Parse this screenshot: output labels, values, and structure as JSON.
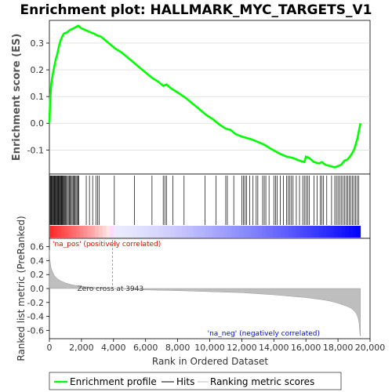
{
  "title": "Enrichment plot: HALLMARK_MYC_TARGETS_V1",
  "colors": {
    "es_line": "#00ff00",
    "hits": "#000000",
    "metric_fill": "#bebebe",
    "pos_text": "#ff0000",
    "neg_text": "#0000ff",
    "pos_band": "#ff0000",
    "neg_band": "#0000ff",
    "grid": "#d0d0d0",
    "zero_line": "#999999"
  },
  "legend": {
    "es": "Enrichment profile",
    "hits": "Hits",
    "metric": "Ranking metric scores"
  },
  "chart_data": {
    "type": "line",
    "title": "Enrichment plot: HALLMARK_MYC_TARGETS_V1",
    "xlabel": "Rank in Ordered Dataset",
    "xlim": [
      0,
      20000
    ],
    "x_ticks": [
      0,
      2000,
      4000,
      6000,
      8000,
      10000,
      12000,
      14000,
      16000,
      18000,
      20000
    ],
    "x_tick_labels": [
      "0",
      "2,000",
      "4,000",
      "6,000",
      "8,000",
      "10,000",
      "12,000",
      "14,000",
      "16,000",
      "18,000",
      "20,000"
    ],
    "n_genes": 19400,
    "es_panel": {
      "ylabel": "Enrichment score (ES)",
      "ylim": [
        -0.19,
        0.385
      ],
      "y_ticks": [
        -0.1,
        0.0,
        0.1,
        0.2,
        0.3
      ],
      "y_tick_labels": [
        "-0.1",
        "0.0",
        "0.1",
        "0.2",
        "0.3"
      ],
      "grid": true,
      "series": [
        {
          "name": "Enrichment profile",
          "x": [
            0,
            50,
            120,
            200,
            300,
            400,
            500,
            600,
            700,
            800,
            900,
            1000,
            1100,
            1200,
            1300,
            1400,
            1500,
            1600,
            1700,
            1800,
            2000,
            2200,
            2500,
            2800,
            3000,
            3200,
            3500,
            3800,
            4100,
            4500,
            5000,
            5300,
            5600,
            6000,
            6400,
            6800,
            7100,
            7300,
            7600,
            8000,
            8500,
            9000,
            9500,
            9800,
            10200,
            10600,
            11000,
            11300,
            11600,
            12000,
            12300,
            12600,
            13000,
            13400,
            13800,
            14100,
            14400,
            14800,
            15200,
            15600,
            15900,
            16000,
            16200,
            16500,
            16800,
            17000,
            17200,
            17500,
            17800,
            18000,
            18200,
            18400,
            18600,
            18800,
            19000,
            19100,
            19200,
            19300,
            19400
          ],
          "values": [
            0.0,
            0.09,
            0.15,
            0.18,
            0.21,
            0.24,
            0.26,
            0.29,
            0.31,
            0.325,
            0.335,
            0.338,
            0.34,
            0.345,
            0.35,
            0.352,
            0.355,
            0.358,
            0.362,
            0.365,
            0.355,
            0.35,
            0.342,
            0.335,
            0.328,
            0.325,
            0.31,
            0.295,
            0.28,
            0.265,
            0.24,
            0.225,
            0.21,
            0.19,
            0.17,
            0.155,
            0.14,
            0.145,
            0.13,
            0.115,
            0.095,
            0.07,
            0.045,
            0.03,
            0.015,
            -0.005,
            -0.02,
            -0.025,
            -0.04,
            -0.05,
            -0.055,
            -0.06,
            -0.07,
            -0.08,
            -0.095,
            -0.105,
            -0.115,
            -0.125,
            -0.13,
            -0.14,
            -0.145,
            -0.125,
            -0.13,
            -0.145,
            -0.15,
            -0.145,
            -0.155,
            -0.16,
            -0.165,
            -0.16,
            -0.155,
            -0.14,
            -0.135,
            -0.12,
            -0.1,
            -0.08,
            -0.06,
            -0.03,
            0.0
          ]
        }
      ]
    },
    "hits_panel": {
      "hit_ranks": [
        20,
        60,
        100,
        140,
        180,
        220,
        260,
        300,
        340,
        380,
        420,
        460,
        500,
        540,
        580,
        620,
        660,
        700,
        740,
        780,
        820,
        860,
        900,
        950,
        1000,
        1060,
        1120,
        1180,
        1240,
        1300,
        1360,
        1420,
        1480,
        1540,
        1600,
        1660,
        1720,
        1780,
        1840,
        2300,
        2500,
        2700,
        2900,
        3000,
        3100,
        4050,
        5300,
        6400,
        7100,
        7200,
        7300,
        7700,
        8400,
        9700,
        10400,
        11000,
        11100,
        11500,
        12000,
        12100,
        12200,
        12300,
        12500,
        12700,
        12900,
        13000,
        13300,
        13400,
        13500,
        13700,
        14000,
        14100,
        14200,
        14400,
        14600,
        14800,
        14900,
        15000,
        15100,
        15200,
        15400,
        15600,
        15800,
        15900,
        16000,
        16100,
        16200,
        16500,
        16700,
        16900,
        17000,
        17100,
        17300,
        17600,
        17800,
        17900,
        18000,
        18100,
        18200,
        18300,
        18400,
        18500,
        18600,
        18700,
        18800,
        18900,
        19000,
        19100,
        19200,
        19300
      ]
    },
    "metric_panel": {
      "ylabel": "Ranked list metric (PreRanked)",
      "ylim": [
        -0.72,
        0.72
      ],
      "y_ticks": [
        -0.6,
        -0.4,
        -0.2,
        0.0,
        0.2,
        0.4,
        0.6
      ],
      "y_tick_labels": [
        "-0.6",
        "-0.4",
        "-0.2",
        "0.0",
        "0.2",
        "0.4",
        "0.6"
      ],
      "zero_cross": 3943,
      "zero_cross_label": "Zero cross at 3943",
      "pos_label": "'na_pos' (positively correlated)",
      "neg_label": "'na_neg' (negatively correlated)",
      "x": [
        0,
        30,
        100,
        200,
        300,
        500,
        700,
        1000,
        1300,
        1600,
        2000,
        2500,
        3000,
        3500,
        3943,
        5000,
        6000,
        8000,
        10000,
        12000,
        14000,
        16000,
        17000,
        17500,
        18000,
        18500,
        18800,
        19000,
        19150,
        19250,
        19320,
        19380,
        19400
      ],
      "values": [
        0.55,
        0.42,
        0.3,
        0.24,
        0.19,
        0.14,
        0.11,
        0.08,
        0.06,
        0.045,
        0.03,
        0.02,
        0.012,
        0.005,
        0.0,
        -0.01,
        -0.02,
        -0.03,
        -0.045,
        -0.06,
        -0.09,
        -0.13,
        -0.16,
        -0.18,
        -0.21,
        -0.25,
        -0.28,
        -0.32,
        -0.36,
        -0.42,
        -0.5,
        -0.68,
        -0.68
      ]
    }
  }
}
